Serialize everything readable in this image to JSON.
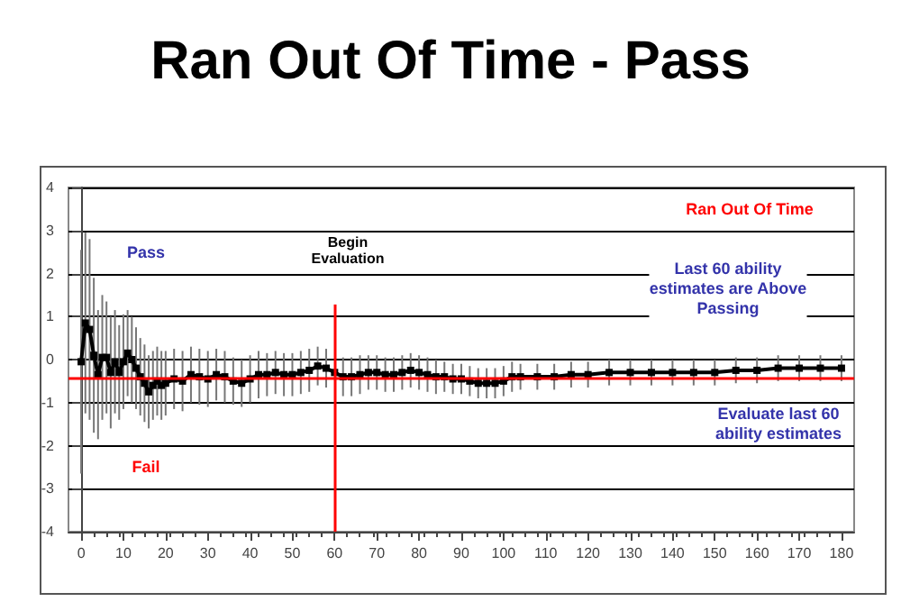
{
  "chart_data": {
    "type": "line",
    "title": "Ran Out Of Time - Pass",
    "x": [
      0,
      1,
      2,
      3,
      4,
      5,
      6,
      7,
      8,
      9,
      10,
      11,
      12,
      13,
      14,
      15,
      16,
      17,
      18,
      19,
      20,
      22,
      24,
      26,
      28,
      30,
      32,
      34,
      36,
      38,
      40,
      42,
      44,
      46,
      48,
      50,
      52,
      54,
      56,
      58,
      60,
      62,
      64,
      66,
      68,
      70,
      72,
      74,
      76,
      78,
      80,
      82,
      84,
      86,
      88,
      90,
      92,
      94,
      96,
      98,
      100,
      102,
      104,
      108,
      112,
      116,
      120,
      125,
      130,
      135,
      140,
      145,
      150,
      155,
      160,
      165,
      170,
      175,
      180
    ],
    "series": [
      {
        "color": "#000000",
        "values": [
          -0.05,
          0.85,
          0.7,
          0.1,
          -0.35,
          0.05,
          0.05,
          -0.3,
          -0.05,
          -0.3,
          -0.05,
          0.15,
          0.0,
          -0.2,
          -0.4,
          -0.55,
          -0.75,
          -0.6,
          -0.5,
          -0.6,
          -0.55,
          -0.45,
          -0.5,
          -0.35,
          -0.4,
          -0.45,
          -0.35,
          -0.4,
          -0.5,
          -0.55,
          -0.45,
          -0.35,
          -0.35,
          -0.3,
          -0.35,
          -0.35,
          -0.3,
          -0.25,
          -0.15,
          -0.2,
          -0.3,
          -0.4,
          -0.4,
          -0.35,
          -0.3,
          -0.3,
          -0.35,
          -0.35,
          -0.3,
          -0.25,
          -0.3,
          -0.35,
          -0.4,
          -0.4,
          -0.45,
          -0.45,
          -0.5,
          -0.55,
          -0.55,
          -0.55,
          -0.5,
          -0.4,
          -0.4,
          -0.4,
          -0.4,
          -0.35,
          -0.35,
          -0.3,
          -0.3,
          -0.3,
          -0.3,
          -0.3,
          -0.3,
          -0.25,
          -0.25,
          -0.2,
          -0.2,
          -0.2,
          -0.2
        ],
        "errors": [
          2.6,
          2.1,
          2.1,
          1.8,
          1.5,
          1.45,
          1.3,
          1.3,
          1.2,
          1.1,
          1.1,
          1.0,
          1.0,
          0.95,
          0.9,
          0.9,
          0.85,
          0.8,
          0.8,
          0.8,
          0.75,
          0.7,
          0.7,
          0.65,
          0.65,
          0.65,
          0.6,
          0.6,
          0.55,
          0.55,
          0.55,
          0.55,
          0.5,
          0.5,
          0.5,
          0.5,
          0.5,
          0.5,
          0.45,
          0.45,
          null,
          0.45,
          0.45,
          0.45,
          0.4,
          0.4,
          0.4,
          0.4,
          0.4,
          0.4,
          0.4,
          0.4,
          0.4,
          0.35,
          0.35,
          0.35,
          0.35,
          0.35,
          0.35,
          0.35,
          0.35,
          0.35,
          0.3,
          0.3,
          0.3,
          0.3,
          0.3,
          0.3,
          0.3,
          0.3,
          0.3,
          0.3,
          0.3,
          0.3,
          0.3,
          0.3,
          0.3,
          0.3,
          0.3
        ]
      }
    ],
    "marker": "square",
    "xlim": [
      -3,
      183
    ],
    "xticks": [
      0,
      10,
      20,
      30,
      40,
      50,
      60,
      70,
      80,
      90,
      100,
      110,
      120,
      130,
      140,
      150,
      160,
      170,
      180
    ],
    "ylim": [
      -4,
      4
    ],
    "yticks": [
      -4,
      -3,
      -2,
      -1,
      0,
      1,
      2,
      3,
      4
    ],
    "grid": "y",
    "ref_lines": [
      {
        "axis": "y",
        "value": -0.45,
        "color": "#ff0000"
      },
      {
        "axis": "x",
        "value": 60,
        "color": "#ff0000"
      }
    ],
    "annotations": [
      "Pass",
      "Fail",
      "Begin Evaluation",
      "Ran Out Of Time",
      "Last 60 ability estimates are Above Passing",
      "Evaluate last 60 ability estimates"
    ]
  }
}
